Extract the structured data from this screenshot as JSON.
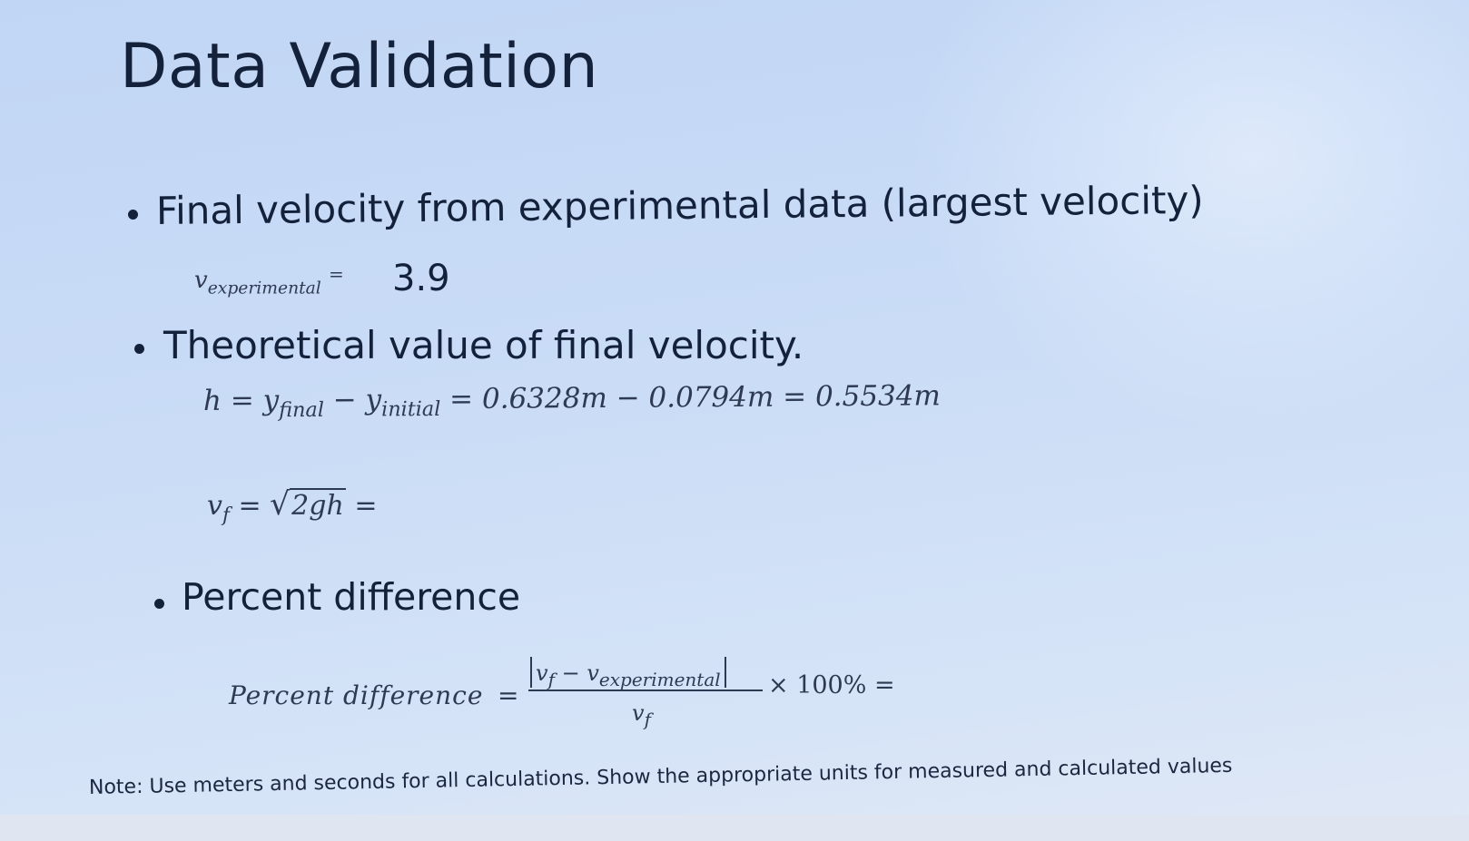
{
  "slide": {
    "title": "Data Validation",
    "bullets": [
      {
        "text": "Final velocity from experimental data (largest velocity)"
      },
      {
        "text": "Theoretical value of final velocity."
      },
      {
        "text": "Percent difference"
      }
    ],
    "experimental": {
      "symbol": "v",
      "subscript": "experimental",
      "equals": "=",
      "value": "3.9"
    },
    "height_equation": {
      "lhs": "h = ",
      "y": "y",
      "sub_final": "final",
      "minus": " − ",
      "sub_initial": "initial",
      "rhs": " = 0.6328m  − 0.0794m = 0.5534m"
    },
    "velocity_equation": {
      "v": "v",
      "sub_f": "f",
      "equals": " = ",
      "radicand": "2gh",
      "tail": " ="
    },
    "percent_equation": {
      "label": "Percent difference",
      "equals": "=",
      "num_v": "v",
      "num_sub_f": "f",
      "num_minus": " − ",
      "num_sub_exp": "experimental",
      "den_v": "v",
      "den_sub_f": "f",
      "tail": "× 100% ="
    },
    "note": "Note: Use meters and seconds for all calculations.  Show the appropriate units for measured and calculated values"
  },
  "colors": {
    "background": "#c9d9f2",
    "text": "#14213a",
    "math": "#2e3a52"
  }
}
